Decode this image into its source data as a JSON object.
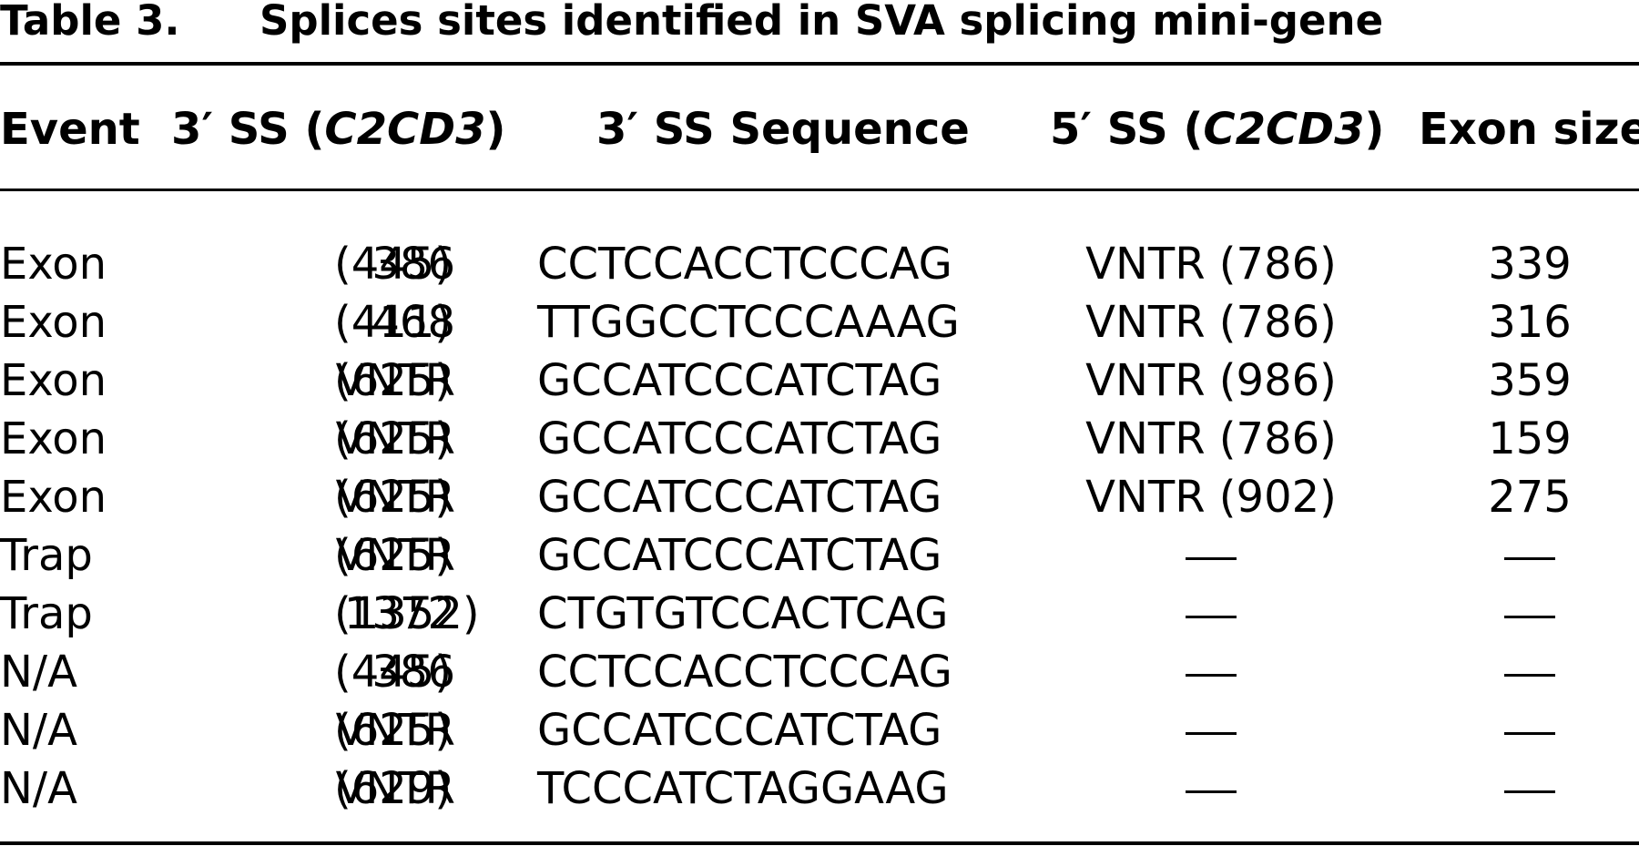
{
  "caption": {
    "label": "Table 3.",
    "title": "Splices sites identified in SVA splicing mini-gene"
  },
  "headers": {
    "event": "Event",
    "ss3_prefix": "3′ SS (",
    "gene": "C2CD3",
    "ss3_suffix": ")",
    "sequence": "3′ SS Sequence",
    "ss5_prefix": "5′ SS (",
    "ss5_suffix": ")",
    "exon_size": "Exon size"
  },
  "rows": [
    {
      "event": "Exon",
      "ss3_pos": "386",
      "ss3_par": "(445)",
      "sequence": "CCTCCACCTCCCAG",
      "ss5": "VNTR (786)",
      "size": "339"
    },
    {
      "event": "Exon",
      "ss3_pos": "468",
      "ss3_par": "(411)",
      "sequence": "TTGGCCTCCCAAAG",
      "ss5": "VNTR (786)",
      "size": "316"
    },
    {
      "event": "Exon",
      "ss3_pos": "VNTR",
      "ss3_par": "(625)",
      "sequence": "GCCATCCCATCTAG",
      "ss5": "VNTR (986)",
      "size": "359"
    },
    {
      "event": "Exon",
      "ss3_pos": "VNTR",
      "ss3_par": "(625)",
      "sequence": "GCCATCCCATCTAG",
      "ss5": "VNTR (786)",
      "size": "159"
    },
    {
      "event": "Exon",
      "ss3_pos": "VNTR",
      "ss3_par": "(625)",
      "sequence": "GCCATCCCATCTAG",
      "ss5": "VNTR (902)",
      "size": "275"
    },
    {
      "event": "Trap",
      "ss3_pos": "VNTR",
      "ss3_par": "(625)",
      "sequence": "GCCATCCCATCTAG",
      "ss5": "—",
      "size": "—"
    },
    {
      "event": "Trap",
      "ss3_pos": "1372",
      "ss3_par": "(1352)",
      "sequence": "CTGTGTCCACTCAG",
      "ss5": "—",
      "size": "—"
    },
    {
      "event": "N/A",
      "ss3_pos": "386",
      "ss3_par": "(445)",
      "sequence": "CCTCCACCTCCCAG",
      "ss5": "—",
      "size": "—"
    },
    {
      "event": "N/A",
      "ss3_pos": "VNTR",
      "ss3_par": "(625)",
      "sequence": "GCCATCCCATCTAG",
      "ss5": "—",
      "size": "—"
    },
    {
      "event": "N/A",
      "ss3_pos": "VNTR",
      "ss3_par": "(629)",
      "sequence": "TCCCATCTAGGAAG",
      "ss5": "—",
      "size": "—"
    }
  ]
}
